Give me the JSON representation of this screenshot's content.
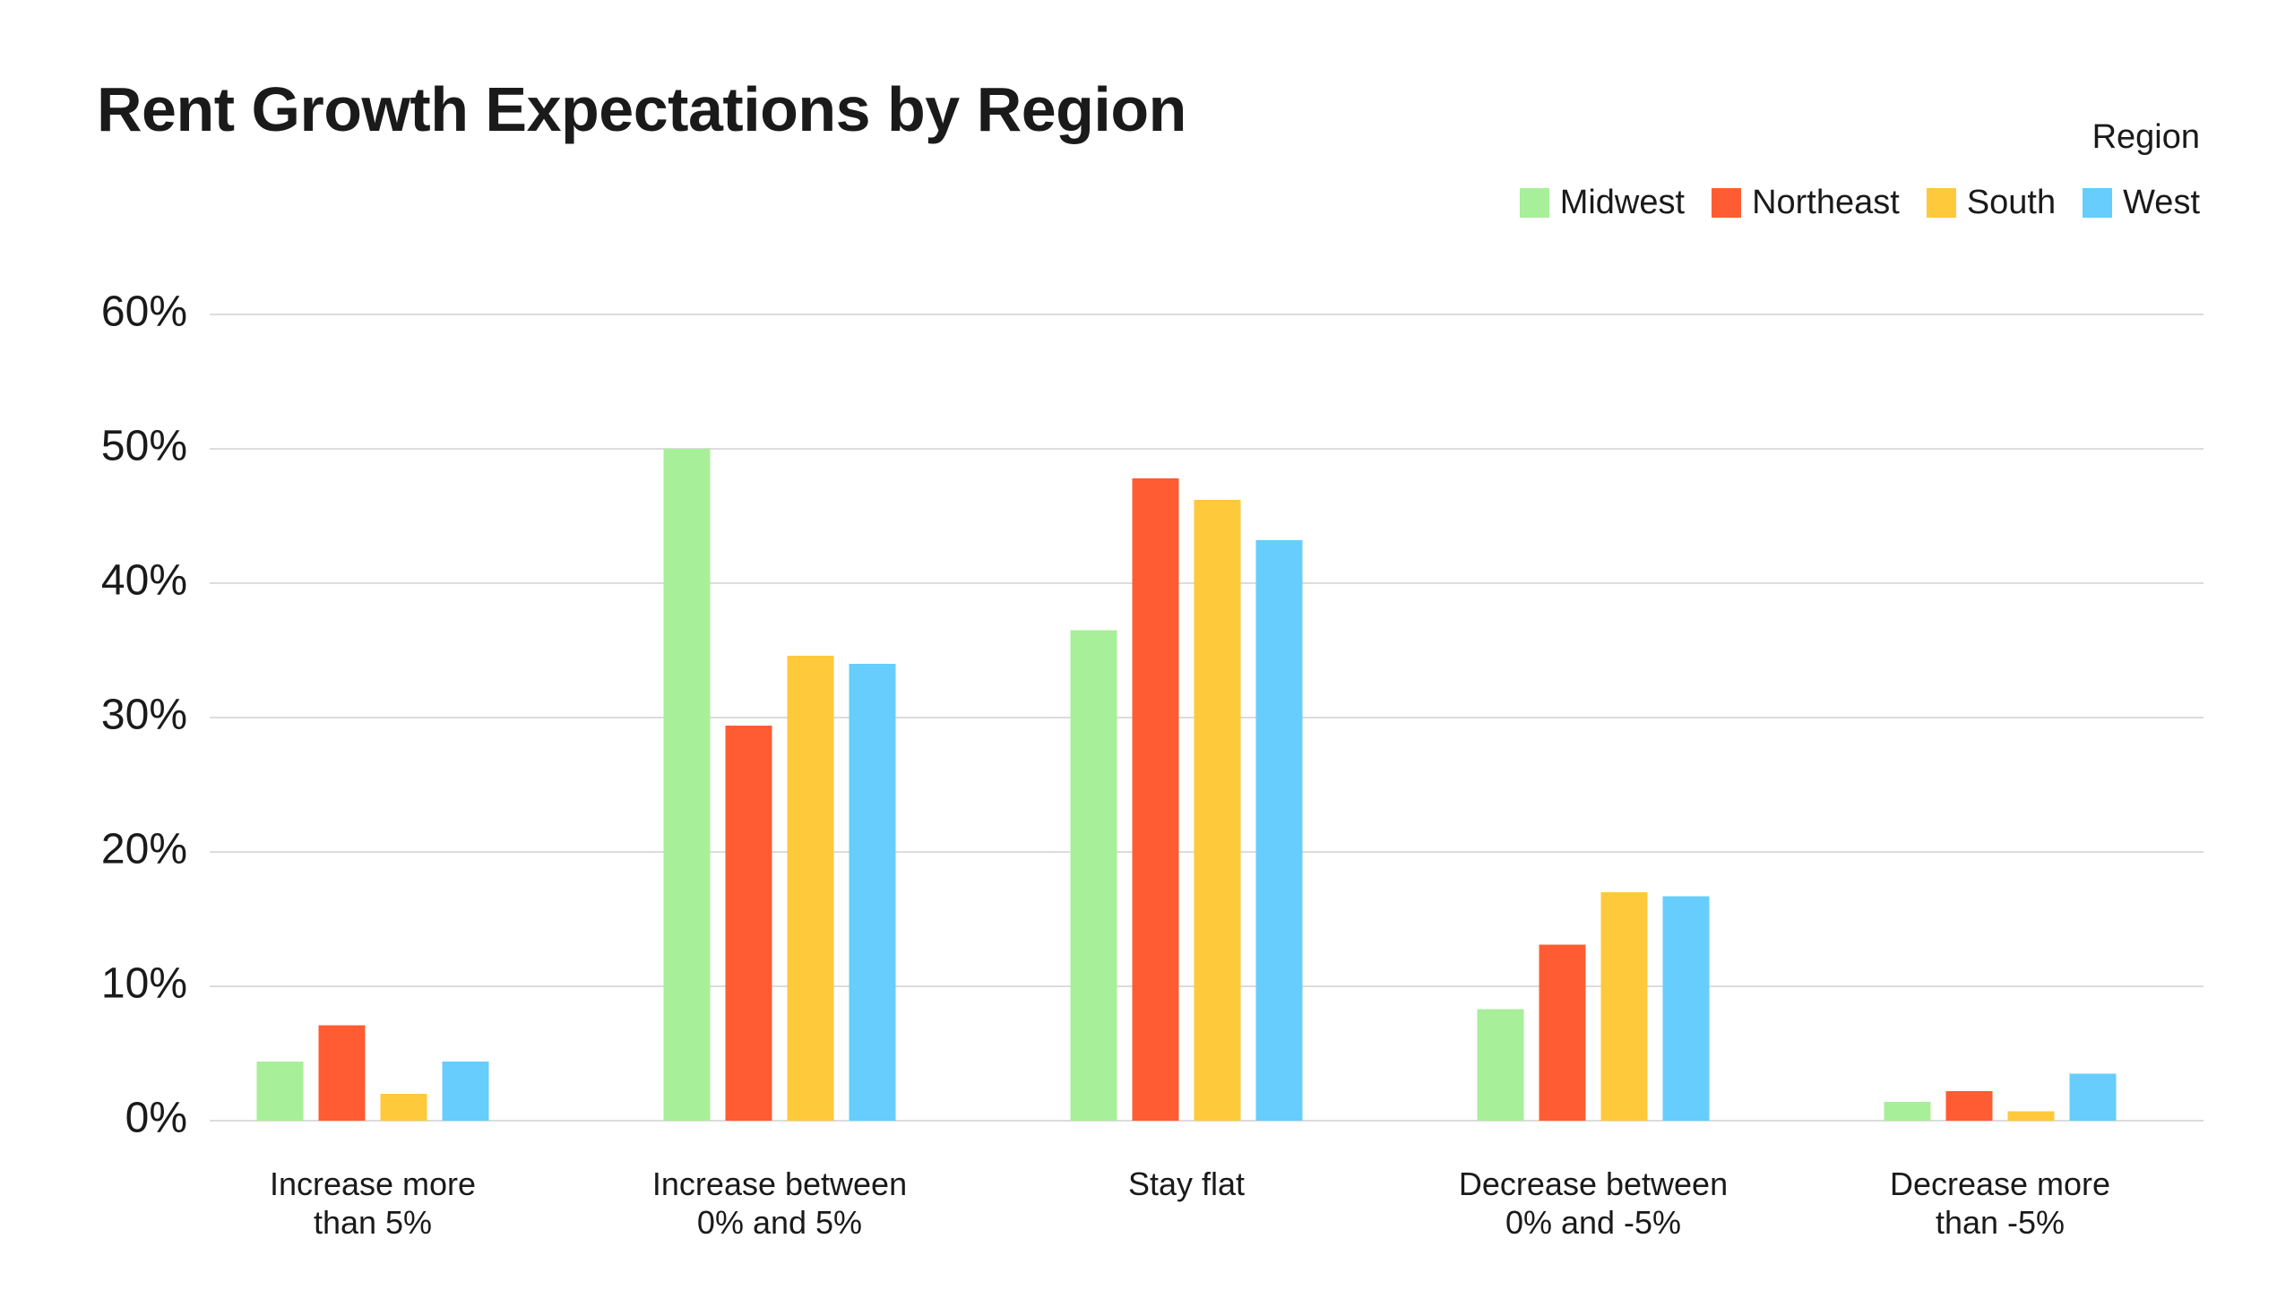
{
  "chart_data": {
    "type": "bar",
    "title": "Rent Growth Expectations by Region",
    "legend_title": "Region",
    "categories": [
      "Increase more\nthan 5%",
      "Increase between\n0% and 5%",
      "Stay flat",
      "Decrease between\n0% and -5%",
      "Decrease more\nthan -5%"
    ],
    "series": [
      {
        "name": "Midwest",
        "color": "#a8ef9a",
        "values": [
          4.4,
          50,
          36.5,
          8.3,
          1.4
        ]
      },
      {
        "name": "Northeast",
        "color": "#ff5c33",
        "values": [
          7.1,
          29.4,
          47.8,
          13.1,
          2.2
        ]
      },
      {
        "name": "South",
        "color": "#ffc93c",
        "values": [
          2.0,
          34.6,
          46.2,
          17.0,
          0.7
        ]
      },
      {
        "name": "West",
        "color": "#66cdfd",
        "values": [
          4.4,
          34.0,
          43.2,
          16.7,
          3.5
        ]
      }
    ],
    "ylim": [
      0,
      60
    ],
    "yticks": [
      {
        "value": 0,
        "label": "0%"
      },
      {
        "value": 10,
        "label": "10%"
      },
      {
        "value": 20,
        "label": "20%"
      },
      {
        "value": 30,
        "label": "30%"
      },
      {
        "value": 40,
        "label": "40%"
      },
      {
        "value": 50,
        "label": "50%"
      },
      {
        "value": 60,
        "label": "60%"
      }
    ],
    "grid": true,
    "legend_position": "top-right"
  }
}
